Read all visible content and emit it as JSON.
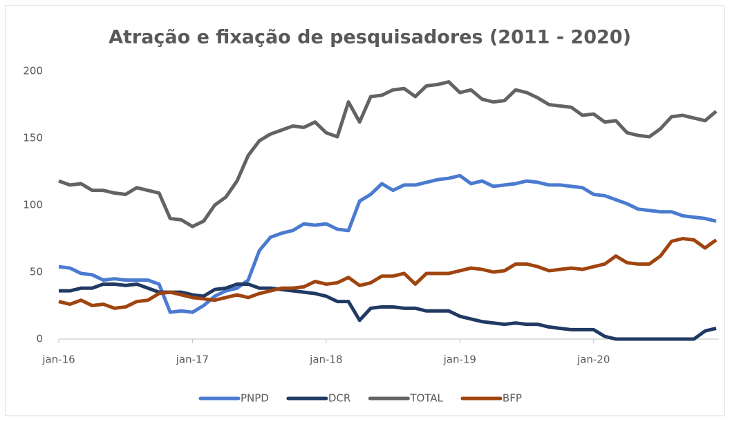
{
  "chart_data": {
    "type": "line",
    "title": "Atração e fixação de pesquisadores (2011 - 2020)",
    "categories": [
      "jan-16",
      null,
      null,
      null,
      null,
      null,
      null,
      null,
      null,
      null,
      null,
      null,
      "jan-17",
      null,
      null,
      null,
      null,
      null,
      null,
      null,
      null,
      null,
      null,
      null,
      "jan-18",
      null,
      null,
      null,
      null,
      null,
      null,
      null,
      null,
      null,
      null,
      null,
      "jan-19",
      null,
      null,
      null,
      null,
      null,
      null,
      null,
      null,
      null,
      null,
      null,
      "jan-20",
      null,
      null,
      null,
      null,
      null,
      null,
      null,
      null,
      null,
      null,
      null
    ],
    "series": [
      {
        "name": "PNPD",
        "color": "#4a7bd0",
        "values": [
          54,
          53,
          49,
          48,
          44,
          45,
          44,
          44,
          44,
          41,
          20,
          21,
          20,
          25,
          32,
          36,
          38,
          44,
          66,
          76,
          79,
          81,
          86,
          85,
          86,
          82,
          81,
          103,
          108,
          116,
          111,
          115,
          115,
          117,
          119,
          120,
          122,
          116,
          118,
          114,
          115,
          116,
          118,
          117,
          115,
          115,
          114,
          113,
          108,
          107,
          104,
          101,
          97,
          96,
          95,
          95,
          92,
          91,
          90,
          88
        ]
      },
      {
        "name": "DCR",
        "color": "#213a63",
        "values": [
          36,
          36,
          38,
          38,
          41,
          41,
          40,
          41,
          38,
          35,
          35,
          35,
          33,
          32,
          37,
          38,
          41,
          41,
          38,
          38,
          37,
          36,
          35,
          34,
          32,
          28,
          28,
          14,
          23,
          24,
          24,
          23,
          23,
          21,
          21,
          21,
          17,
          15,
          13,
          12,
          11,
          12,
          11,
          11,
          9,
          8,
          7,
          7,
          7,
          2,
          0,
          0,
          0,
          0,
          0,
          0,
          0,
          0,
          6,
          8
        ]
      },
      {
        "name": "TOTAL",
        "color": "#636363",
        "values": [
          118,
          115,
          116,
          111,
          111,
          109,
          108,
          113,
          111,
          109,
          90,
          89,
          84,
          88,
          100,
          106,
          118,
          137,
          148,
          153,
          156,
          159,
          158,
          162,
          154,
          151,
          177,
          162,
          181,
          182,
          186,
          187,
          181,
          189,
          190,
          192,
          184,
          186,
          179,
          177,
          178,
          186,
          184,
          180,
          175,
          174,
          173,
          167,
          168,
          162,
          163,
          154,
          152,
          151,
          157,
          166,
          167,
          165,
          163,
          170
        ]
      },
      {
        "name": "BFP",
        "color": "#a0440f",
        "values": [
          28,
          26,
          29,
          25,
          26,
          23,
          24,
          28,
          29,
          34,
          35,
          33,
          31,
          30,
          29,
          31,
          33,
          31,
          34,
          36,
          38,
          38,
          39,
          43,
          41,
          42,
          46,
          40,
          42,
          47,
          47,
          49,
          41,
          49,
          49,
          49,
          51,
          53,
          52,
          50,
          51,
          56,
          56,
          54,
          51,
          52,
          53,
          52,
          54,
          56,
          62,
          57,
          56,
          56,
          62,
          73,
          75,
          74,
          68,
          74
        ]
      }
    ],
    "ylim": [
      0,
      200
    ],
    "yticks": [
      0,
      50,
      100,
      150,
      200
    ],
    "legend": "bottom"
  }
}
